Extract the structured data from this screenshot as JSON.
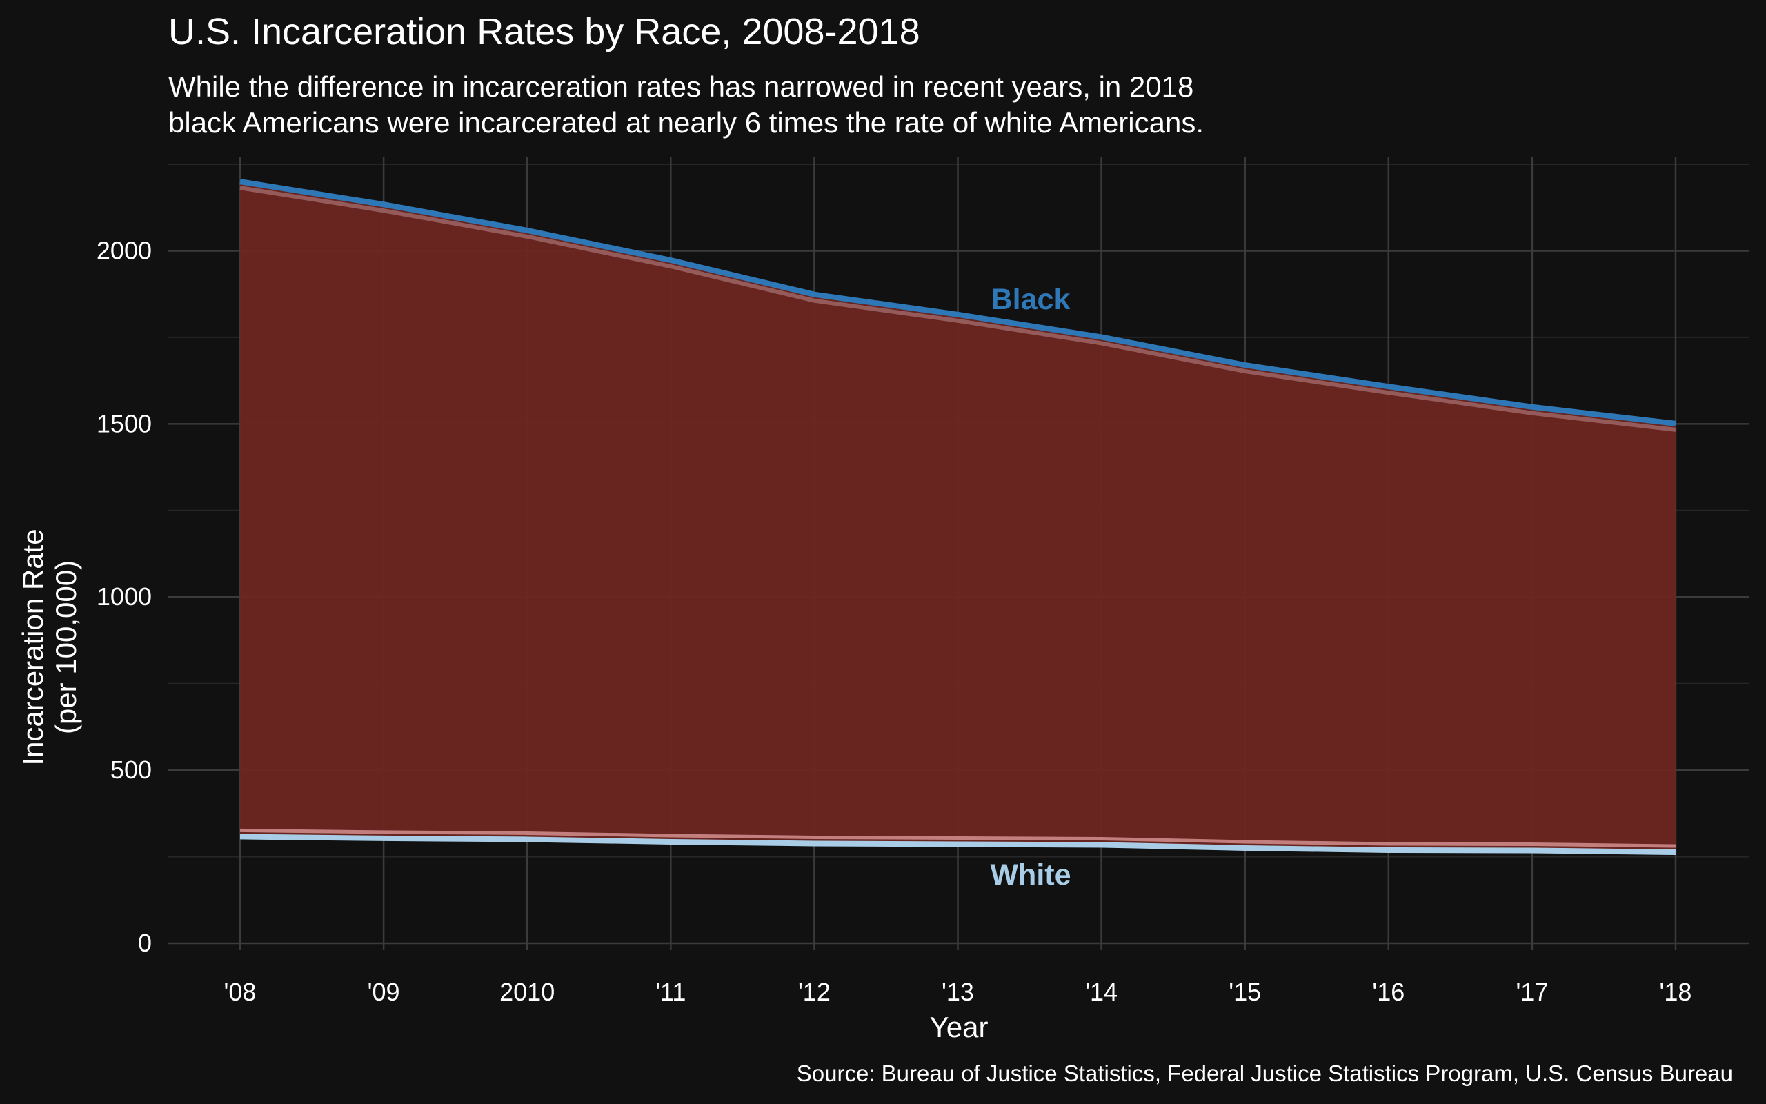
{
  "title": "U.S. Incarceration Rates by Race, 2008-2018",
  "subtitle_lines": [
    "While the difference in incarceration rates has narrowed in recent years, in 2018",
    "black Americans were incarcerated at nearly 6 times the rate of white Americans."
  ],
  "caption": "Source: Bureau of Justice Statistics, Federal Justice Statistics Program, U.S. Census Bureau",
  "colors": {
    "background": "#111111",
    "grid_major": "#3b3b3b",
    "grid_minor": "#262626",
    "gap_fill": "#6b2620",
    "black_line": "#2e78b7",
    "black_edge": "#a0696a",
    "white_line": "#a9cde6",
    "white_edge": "#d48f8f"
  },
  "chart_data": {
    "type": "area",
    "x": [
      2008,
      2009,
      2010,
      2011,
      2012,
      2013,
      2014,
      2015,
      2016,
      2017,
      2018
    ],
    "x_tick_labels": [
      "'08",
      "'09",
      "2010",
      "'11",
      "'12",
      "'13",
      "'14",
      "'15",
      "'16",
      "'17",
      "'18"
    ],
    "y_ticks": [
      0,
      500,
      1000,
      1500,
      2000
    ],
    "ylim": [
      -20,
      2270
    ],
    "xlabel": "Year",
    "ylabel_lines": [
      "Incarceration Rate",
      "(per 100,000)"
    ],
    "grid": true,
    "series": [
      {
        "name": "Black",
        "values": [
          2200,
          2134,
          2059,
          1973,
          1874,
          1816,
          1751,
          1670,
          1608,
          1549,
          1501
        ]
      },
      {
        "name": "White",
        "values": [
          308,
          303,
          300,
          293,
          288,
          286,
          284,
          275,
          269,
          268,
          263
        ]
      }
    ]
  }
}
